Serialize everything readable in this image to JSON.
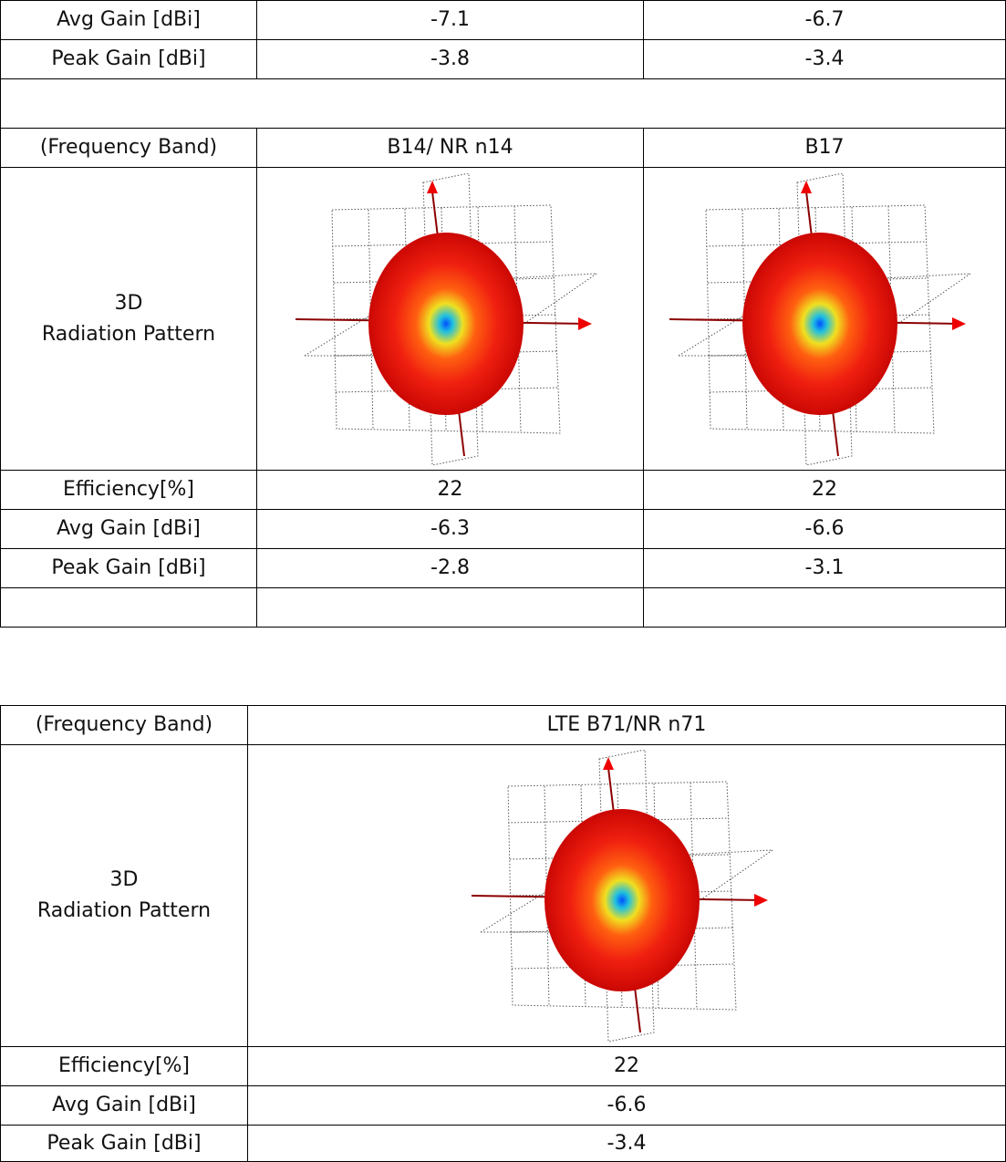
{
  "table1": {
    "rows": [
      [
        "Avg Gain [dBi]",
        -7.1,
        -6.7
      ],
      [
        "Peak Gain [dBi]",
        -3.8,
        -3.4
      ]
    ]
  },
  "table2": {
    "header": [
      "(Frequency Band)",
      "B14/ NR n14",
      "B17"
    ],
    "pattern_label": [
      "3D",
      "Radiation Pattern"
    ],
    "rows": [
      [
        "Efficiency[%]",
        22,
        22
      ],
      [
        "Avg Gain [dBi]",
        -6.3,
        -6.6
      ],
      [
        "Peak Gain [dBi]",
        -2.8,
        -3.1
      ]
    ]
  },
  "table3": {
    "header": [
      "(Frequency Band)",
      "LTE B71/NR n71"
    ],
    "pattern_label": [
      "3D",
      "Radiation Pattern"
    ],
    "rows": [
      [
        "Efficiency[%]",
        22
      ],
      [
        "Avg Gain [dBi]",
        -6.6
      ],
      [
        "Peak Gain [dBi]",
        -3.4
      ]
    ]
  }
}
